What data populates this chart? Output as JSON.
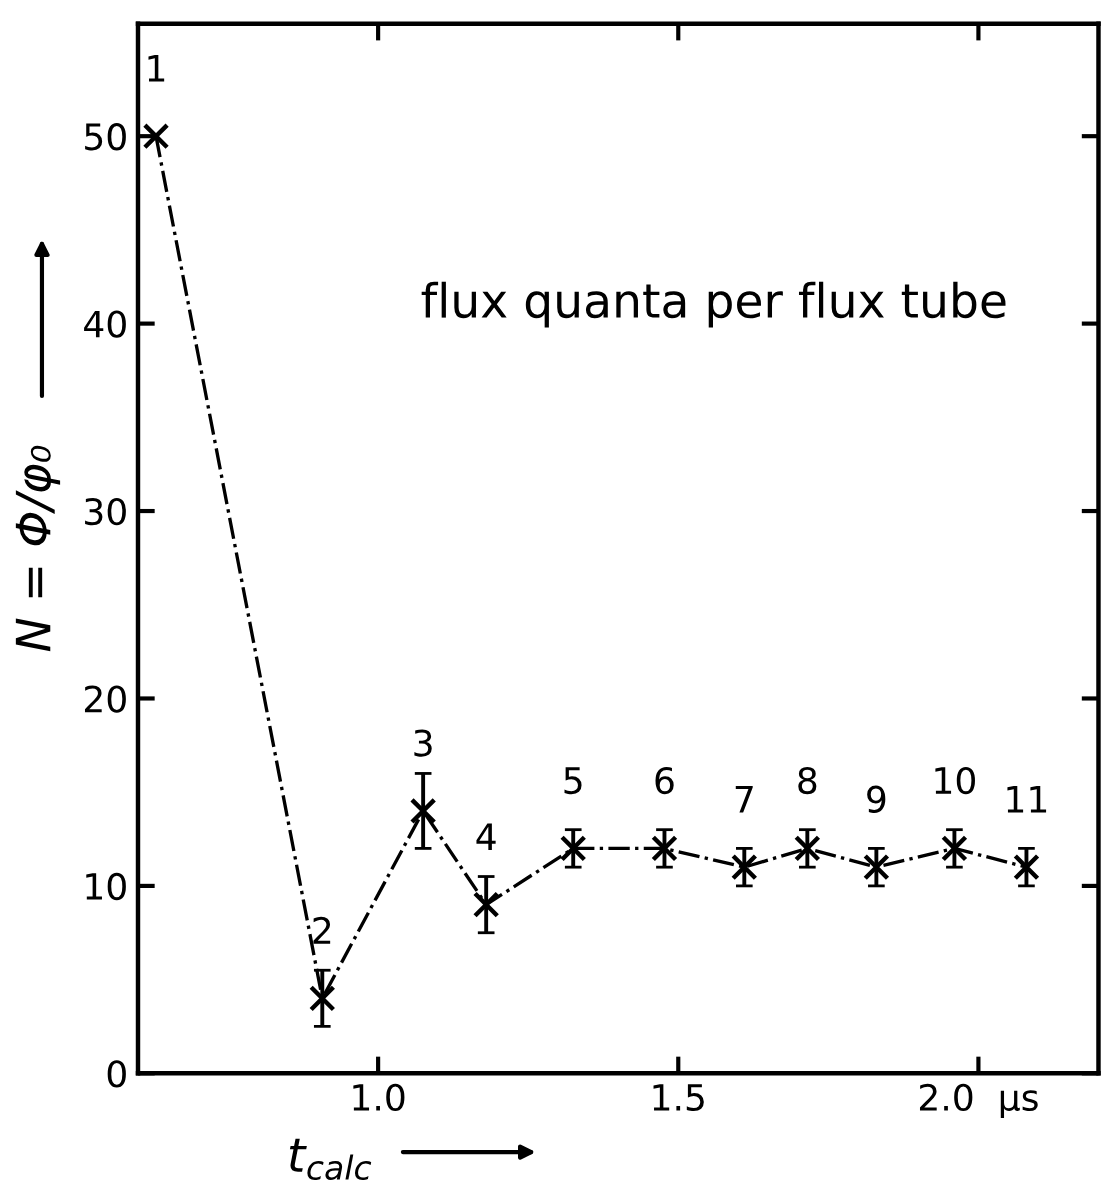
{
  "chart_data": {
    "type": "line",
    "xlabel": "t$_{calc}$",
    "ylabel": "N = Φ/φ₀",
    "x": [
      0.63,
      0.907,
      1.075,
      1.18,
      1.325,
      1.477,
      1.61,
      1.715,
      1.83,
      1.96,
      2.08
    ],
    "series": [
      {
        "color": "#000000",
        "values": [
          50,
          4,
          14,
          9,
          12,
          12,
          11,
          12,
          11,
          12,
          11
        ],
        "errors": [
          null,
          1.5,
          2,
          1.5,
          1,
          1,
          1,
          1,
          1,
          1,
          1
        ]
      }
    ],
    "xlim": [
      0.6,
      2.2
    ],
    "ylim": [
      0,
      56
    ],
    "xticks": [
      {
        "value": 1.0,
        "label": "1.0"
      },
      1.5,
      {
        "value": 2.0,
        "label": "2.0  μs"
      }
    ],
    "yticks": [
      0,
      10,
      20,
      30,
      40,
      50
    ],
    "marker": "cross",
    "line_style": "dashed",
    "grid": false,
    "legend": false,
    "annotations": [
      "flux quanta per flux tube",
      {
        "text": "1",
        "x": 0.63,
        "y": 50
      },
      {
        "text": "2",
        "x": 0.907,
        "y": 4
      },
      {
        "text": "3",
        "x": 1.075,
        "y": 14
      },
      {
        "text": "4",
        "x": 1.18,
        "y": 9
      },
      {
        "text": "5",
        "x": 1.325,
        "y": 12
      },
      {
        "text": "6",
        "x": 1.477,
        "y": 12
      },
      {
        "text": "7",
        "x": 1.61,
        "y": 11
      },
      {
        "text": "8",
        "x": 1.715,
        "y": 12
      },
      {
        "text": "9",
        "x": 1.83,
        "y": 11
      },
      {
        "text": "10",
        "x": 1.96,
        "y": 12
      },
      {
        "text": "11",
        "x": 2.08,
        "y": 11
      }
    ]
  }
}
